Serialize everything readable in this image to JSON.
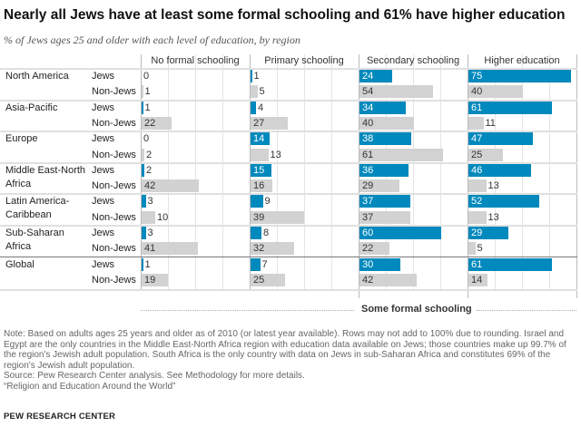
{
  "title": "Nearly all Jews have at least some formal schooling and 61% have higher education",
  "subtitle": "% of Jews ages 25 and older with each level of education, by region",
  "colors": {
    "jews": "#0089bd",
    "non_jews": "#d2d2d2"
  },
  "chart_data": {
    "type": "bar",
    "title": "Nearly all Jews have at least some formal schooling and 61% have higher education",
    "subtitle": "% of Jews ages 25 and older with each level of education, by region",
    "columns": [
      "No formal schooling",
      "Primary schooling",
      "Secondary schooling",
      "Higher education"
    ],
    "span_label": "Some formal schooling",
    "groups": [
      "Jews",
      "Non-Jews"
    ],
    "regions": [
      {
        "name": "North America",
        "Jews": [
          0,
          1,
          24,
          75
        ],
        "Non-Jews": [
          1,
          5,
          54,
          40
        ]
      },
      {
        "name": "Asia-Pacific",
        "Jews": [
          1,
          4,
          34,
          61
        ],
        "Non-Jews": [
          22,
          27,
          40,
          11
        ]
      },
      {
        "name": "Europe",
        "Jews": [
          0,
          14,
          38,
          47
        ],
        "Non-Jews": [
          2,
          13,
          61,
          25
        ]
      },
      {
        "name": "Middle East-North Africa",
        "Jews": [
          2,
          15,
          36,
          46
        ],
        "Non-Jews": [
          42,
          16,
          29,
          13
        ]
      },
      {
        "name": "Latin America-Caribbean",
        "Jews": [
          3,
          9,
          37,
          52
        ],
        "Non-Jews": [
          10,
          39,
          37,
          13
        ]
      },
      {
        "name": "Sub-Saharan Africa",
        "Jews": [
          3,
          8,
          60,
          29
        ],
        "Non-Jews": [
          41,
          32,
          22,
          5
        ]
      },
      {
        "name": "Global",
        "Jews": [
          1,
          7,
          30,
          61
        ],
        "Non-Jews": [
          19,
          25,
          42,
          14
        ]
      }
    ],
    "xlim": [
      0,
      80
    ],
    "grid": true
  },
  "notes": [
    "Note: Based on adults ages 25 years and older as of 2010 (or latest year available). Rows may not add to 100% due to rounding. Israel and Egypt are the only countries in the Middle East-North Africa region with education data available on Jews; those countries make up 99.7% of the region's Jewish adult population. South Africa is the only country with data on Jews in sub-Saharan Africa and constitutes 69% of the region's Jewish adult population.",
    "Source: Pew Research Center analysis. See Methodology for more details.",
    "“Religion and Education Around the World”"
  ],
  "brand": "PEW RESEARCH CENTER"
}
